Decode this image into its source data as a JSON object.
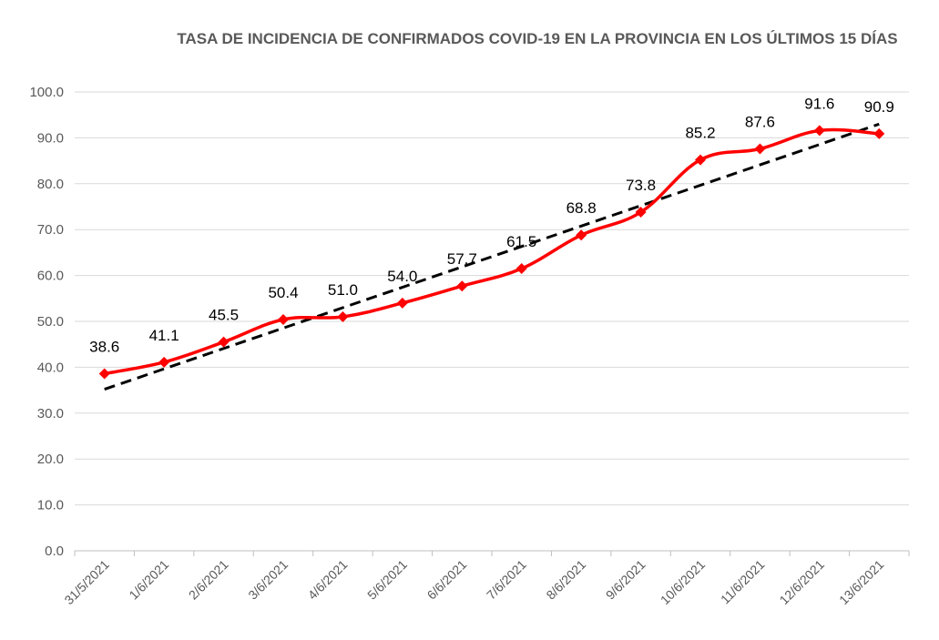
{
  "chart_data": {
    "type": "line",
    "title": "TASA DE INCIDENCIA  DE CONFIRMADOS COVID-19 EN LA PROVINCIA EN LOS ÚLTIMOS 15 DÍAS",
    "categories": [
      "31/5/2021",
      "1/6/2021",
      "2/6/2021",
      "3/6/2021",
      "4/6/2021",
      "5/6/2021",
      "6/6/2021",
      "7/6/2021",
      "8/6/2021",
      "9/6/2021",
      "10/6/2021",
      "11/6/2021",
      "12/6/2021",
      "13/6/2021"
    ],
    "series": [
      {
        "name": "Tasa de incidencia",
        "values": [
          38.6,
          41.1,
          45.5,
          50.4,
          51.0,
          54.0,
          57.7,
          61.5,
          68.8,
          73.8,
          85.2,
          87.6,
          91.6,
          90.9
        ],
        "labels": [
          "38.6",
          "41.1",
          "45.5",
          "50.4",
          "51.0",
          "54.0",
          "57.7",
          "61.5",
          "68.8",
          "73.8",
          "85.2",
          "87.6",
          "91.6",
          "90.9"
        ],
        "color": "#ff0000",
        "marker": "diamond"
      },
      {
        "name": "Tendencia lineal",
        "type": "trendline",
        "start": 35.2,
        "end": 93.0,
        "color": "#000000",
        "dash": true
      }
    ],
    "yticks": [
      "0.0",
      "10.0",
      "20.0",
      "30.0",
      "40.0",
      "50.0",
      "60.0",
      "70.0",
      "80.0",
      "90.0",
      "100.0"
    ],
    "ylim": [
      0,
      100
    ],
    "xlabel": "",
    "ylabel": "",
    "grid": true,
    "legend": "none"
  }
}
